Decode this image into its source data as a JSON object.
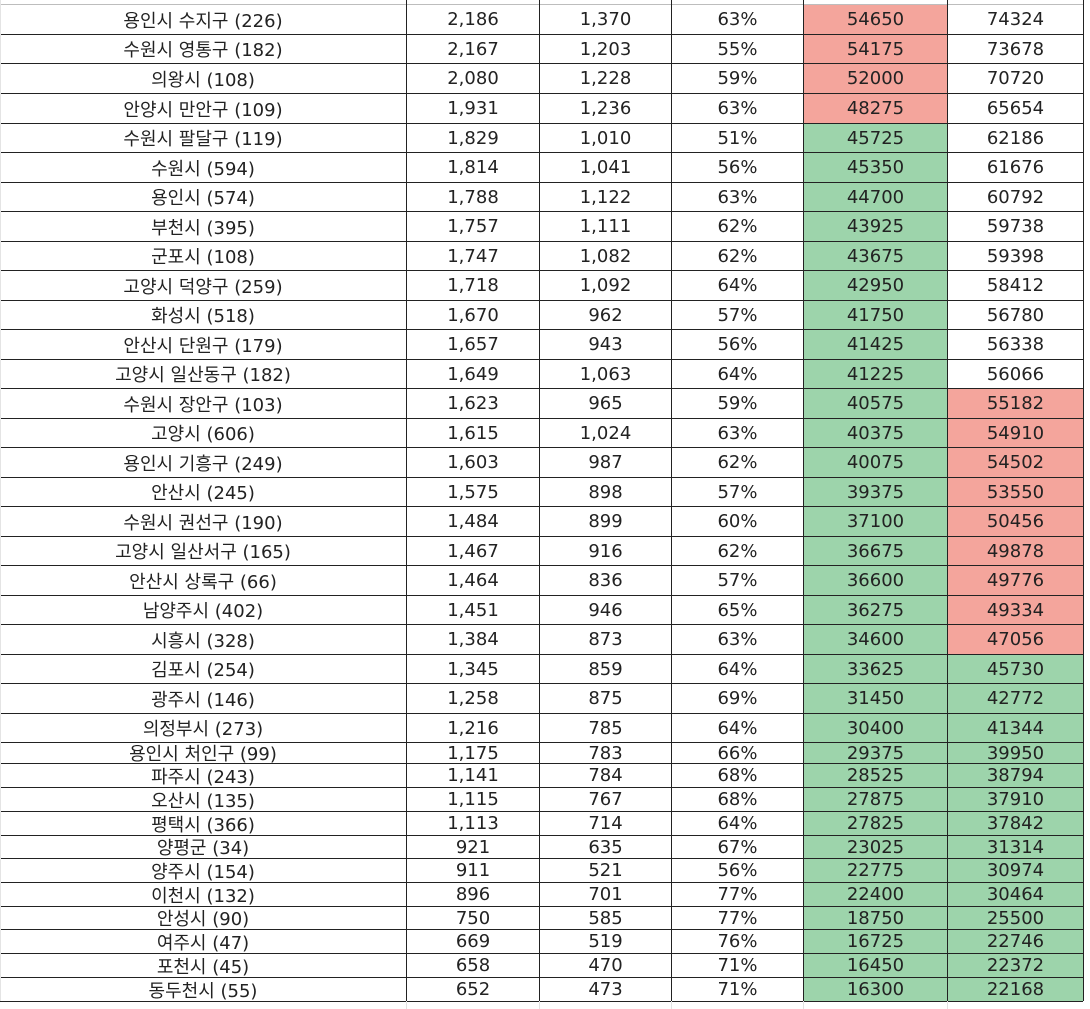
{
  "sheet": {
    "colors": {
      "red_fill": "#f4a59c",
      "green_fill": "#9dd4ab",
      "grid": "#222222"
    },
    "rows": [
      [
        "용인시 수지구 (226)",
        "2,186",
        "1,370",
        "63%",
        "54650",
        "74324"
      ],
      [
        "수원시 영통구 (182)",
        "2,167",
        "1,203",
        "55%",
        "54175",
        "73678"
      ],
      [
        "의왕시 (108)",
        "2,080",
        "1,228",
        "59%",
        "52000",
        "70720"
      ],
      [
        "안양시 만안구 (109)",
        "1,931",
        "1,236",
        "63%",
        "48275",
        "65654"
      ],
      [
        "수원시 팔달구 (119)",
        "1,829",
        "1,010",
        "51%",
        "45725",
        "62186"
      ],
      [
        "수원시 (594)",
        "1,814",
        "1,041",
        "56%",
        "45350",
        "61676"
      ],
      [
        "용인시 (574)",
        "1,788",
        "1,122",
        "63%",
        "44700",
        "60792"
      ],
      [
        "부천시 (395)",
        "1,757",
        "1,111",
        "62%",
        "43925",
        "59738"
      ],
      [
        "군포시 (108)",
        "1,747",
        "1,082",
        "62%",
        "43675",
        "59398"
      ],
      [
        "고양시 덕양구 (259)",
        "1,718",
        "1,092",
        "64%",
        "42950",
        "58412"
      ],
      [
        "화성시 (518)",
        "1,670",
        "962",
        "57%",
        "41750",
        "56780"
      ],
      [
        "안산시 단원구 (179)",
        "1,657",
        "943",
        "56%",
        "41425",
        "56338"
      ],
      [
        "고양시 일산동구 (182)",
        "1,649",
        "1,063",
        "64%",
        "41225",
        "56066"
      ],
      [
        "수원시 장안구 (103)",
        "1,623",
        "965",
        "59%",
        "40575",
        "55182"
      ],
      [
        "고양시 (606)",
        "1,615",
        "1,024",
        "63%",
        "40375",
        "54910"
      ],
      [
        "용인시 기흥구 (249)",
        "1,603",
        "987",
        "62%",
        "40075",
        "54502"
      ],
      [
        "안산시 (245)",
        "1,575",
        "898",
        "57%",
        "39375",
        "53550"
      ],
      [
        "수원시 권선구 (190)",
        "1,484",
        "899",
        "60%",
        "37100",
        "50456"
      ],
      [
        "고양시 일산서구 (165)",
        "1,467",
        "916",
        "62%",
        "36675",
        "49878"
      ],
      [
        "안산시 상록구 (66)",
        "1,464",
        "836",
        "57%",
        "36600",
        "49776"
      ],
      [
        "남양주시 (402)",
        "1,451",
        "946",
        "65%",
        "36275",
        "49334"
      ],
      [
        "시흥시 (328)",
        "1,384",
        "873",
        "63%",
        "34600",
        "47056"
      ],
      [
        "김포시 (254)",
        "1,345",
        "859",
        "64%",
        "33625",
        "45730"
      ],
      [
        "광주시 (146)",
        "1,258",
        "875",
        "69%",
        "31450",
        "42772"
      ],
      [
        "의정부시 (273)",
        "1,216",
        "785",
        "64%",
        "30400",
        "41344"
      ],
      [
        "용인시 처인구 (99)",
        "1,175",
        "783",
        "66%",
        "29375",
        "39950"
      ],
      [
        "파주시 (243)",
        "1,141",
        "784",
        "68%",
        "28525",
        "38794"
      ],
      [
        "오산시 (135)",
        "1,115",
        "767",
        "68%",
        "27875",
        "37910"
      ],
      [
        "평택시 (366)",
        "1,113",
        "714",
        "64%",
        "27825",
        "37842"
      ],
      [
        "양평군 (34)",
        "921",
        "635",
        "67%",
        "23025",
        "31314"
      ],
      [
        "양주시 (154)",
        "911",
        "521",
        "56%",
        "22775",
        "30974"
      ],
      [
        "이천시 (132)",
        "896",
        "701",
        "77%",
        "22400",
        "30464"
      ],
      [
        "안성시 (90)",
        "750",
        "585",
        "77%",
        "18750",
        "25500"
      ],
      [
        "여주시 (47)",
        "669",
        "519",
        "76%",
        "16725",
        "22746"
      ],
      [
        "포천시 (45)",
        "658",
        "470",
        "71%",
        "16450",
        "22372"
      ],
      [
        "동두천시 (55)",
        "652",
        "473",
        "71%",
        "16300",
        "22168"
      ]
    ],
    "fills": {
      "col4": [
        "red",
        "red",
        "red",
        "red",
        "green",
        "green",
        "green",
        "green",
        "green",
        "green",
        "green",
        "green",
        "green",
        "green",
        "green",
        "green",
        "green",
        "green",
        "green",
        "green",
        "green",
        "green",
        "green",
        "green",
        "green",
        "green",
        "green",
        "green",
        "green",
        "green",
        "green",
        "green",
        "green",
        "green",
        "green",
        "green"
      ],
      "col5": [
        "",
        "",
        "",
        "",
        "",
        "",
        "",
        "",
        "",
        "",
        "",
        "",
        "",
        "red",
        "red",
        "red",
        "red",
        "red",
        "red",
        "red",
        "red",
        "red",
        "green",
        "green",
        "green",
        "green",
        "green",
        "green",
        "green",
        "green",
        "green",
        "green",
        "green",
        "green",
        "green",
        "green"
      ]
    }
  }
}
